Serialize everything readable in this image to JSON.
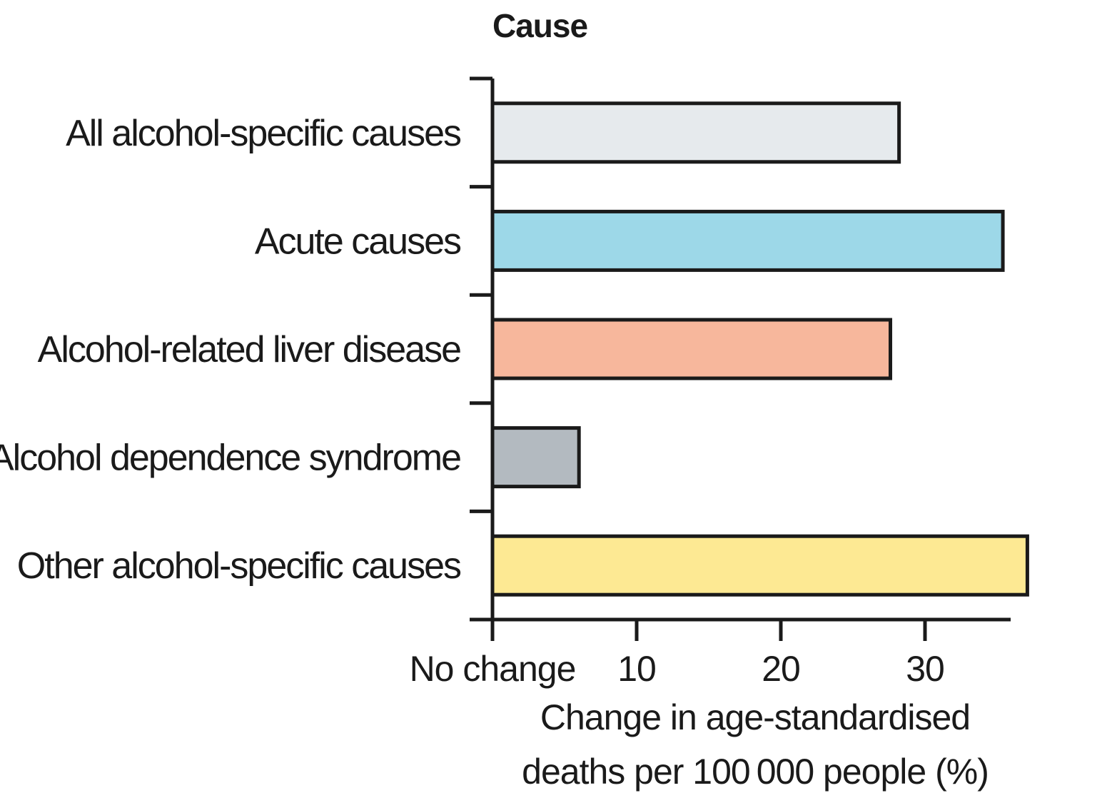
{
  "chart_data": {
    "type": "bar",
    "orientation": "horizontal",
    "title": "Cause",
    "categories": [
      "All alcohol-specific causes",
      "Acute causes",
      "Alcohol-related liver disease",
      "Alcohol dependence syndrome",
      "Other alcohol-specific causes"
    ],
    "values": [
      28.2,
      35.4,
      27.6,
      6.0,
      37.1
    ],
    "colors": [
      "#e6eaed",
      "#9dd8e8",
      "#f7b79c",
      "#b3bac0",
      "#fde993"
    ],
    "ticks": [
      {
        "value": 0,
        "label": "No change"
      },
      {
        "value": 10,
        "label": "10"
      },
      {
        "value": 20,
        "label": "20"
      },
      {
        "value": 30,
        "label": "30"
      }
    ],
    "xlabel_lines": [
      "Change in age-standardised",
      "deaths per 100 000 people (%)"
    ],
    "xlim": [
      0,
      37.5
    ],
    "grid": false,
    "legend": "none"
  }
}
